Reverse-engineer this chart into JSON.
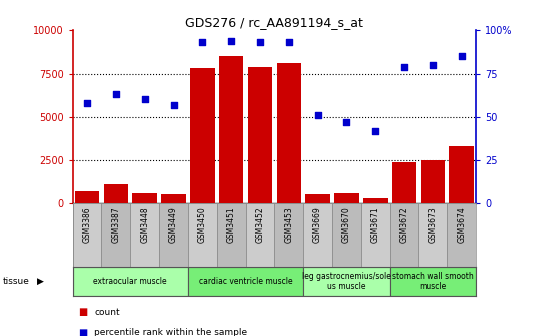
{
  "title": "GDS276 / rc_AA891194_s_at",
  "samples": [
    "GSM3386",
    "GSM3387",
    "GSM3448",
    "GSM3449",
    "GSM3450",
    "GSM3451",
    "GSM3452",
    "GSM3453",
    "GSM3669",
    "GSM3670",
    "GSM3671",
    "GSM3672",
    "GSM3673",
    "GSM3674"
  ],
  "counts": [
    700,
    1100,
    600,
    550,
    7800,
    8500,
    7900,
    8100,
    550,
    600,
    300,
    2400,
    2500,
    3300
  ],
  "percentiles": [
    58,
    63,
    60,
    57,
    93,
    94,
    93,
    93,
    51,
    47,
    42,
    79,
    80,
    85
  ],
  "ylim_left": [
    0,
    10000
  ],
  "ylim_right": [
    0,
    100
  ],
  "yticks_left": [
    0,
    2500,
    5000,
    7500,
    10000
  ],
  "yticks_right": [
    0,
    25,
    50,
    75,
    100
  ],
  "bar_color": "#cc0000",
  "dot_color": "#0000cc",
  "tissue_groups": [
    {
      "label": "extraocular muscle",
      "start": 0,
      "end": 4,
      "color": "#aaffaa"
    },
    {
      "label": "cardiac ventricle muscle",
      "start": 4,
      "end": 8,
      "color": "#77ee77"
    },
    {
      "label": "leg gastrocnemius/sole\nus muscle",
      "start": 8,
      "end": 11,
      "color": "#aaffaa"
    },
    {
      "label": "stomach wall smooth\nmuscle",
      "start": 11,
      "end": 14,
      "color": "#77ee77"
    }
  ],
  "tissue_label": "tissue",
  "legend_count_label": "count",
  "legend_pct_label": "percentile rank within the sample",
  "left_axis_color": "#cc0000",
  "right_axis_color": "#0000cc",
  "bg_color": "#ffffff",
  "plot_bg": "#ffffff",
  "xtick_bg": "#cccccc",
  "xtick_alt_bg": "#bbbbbb"
}
